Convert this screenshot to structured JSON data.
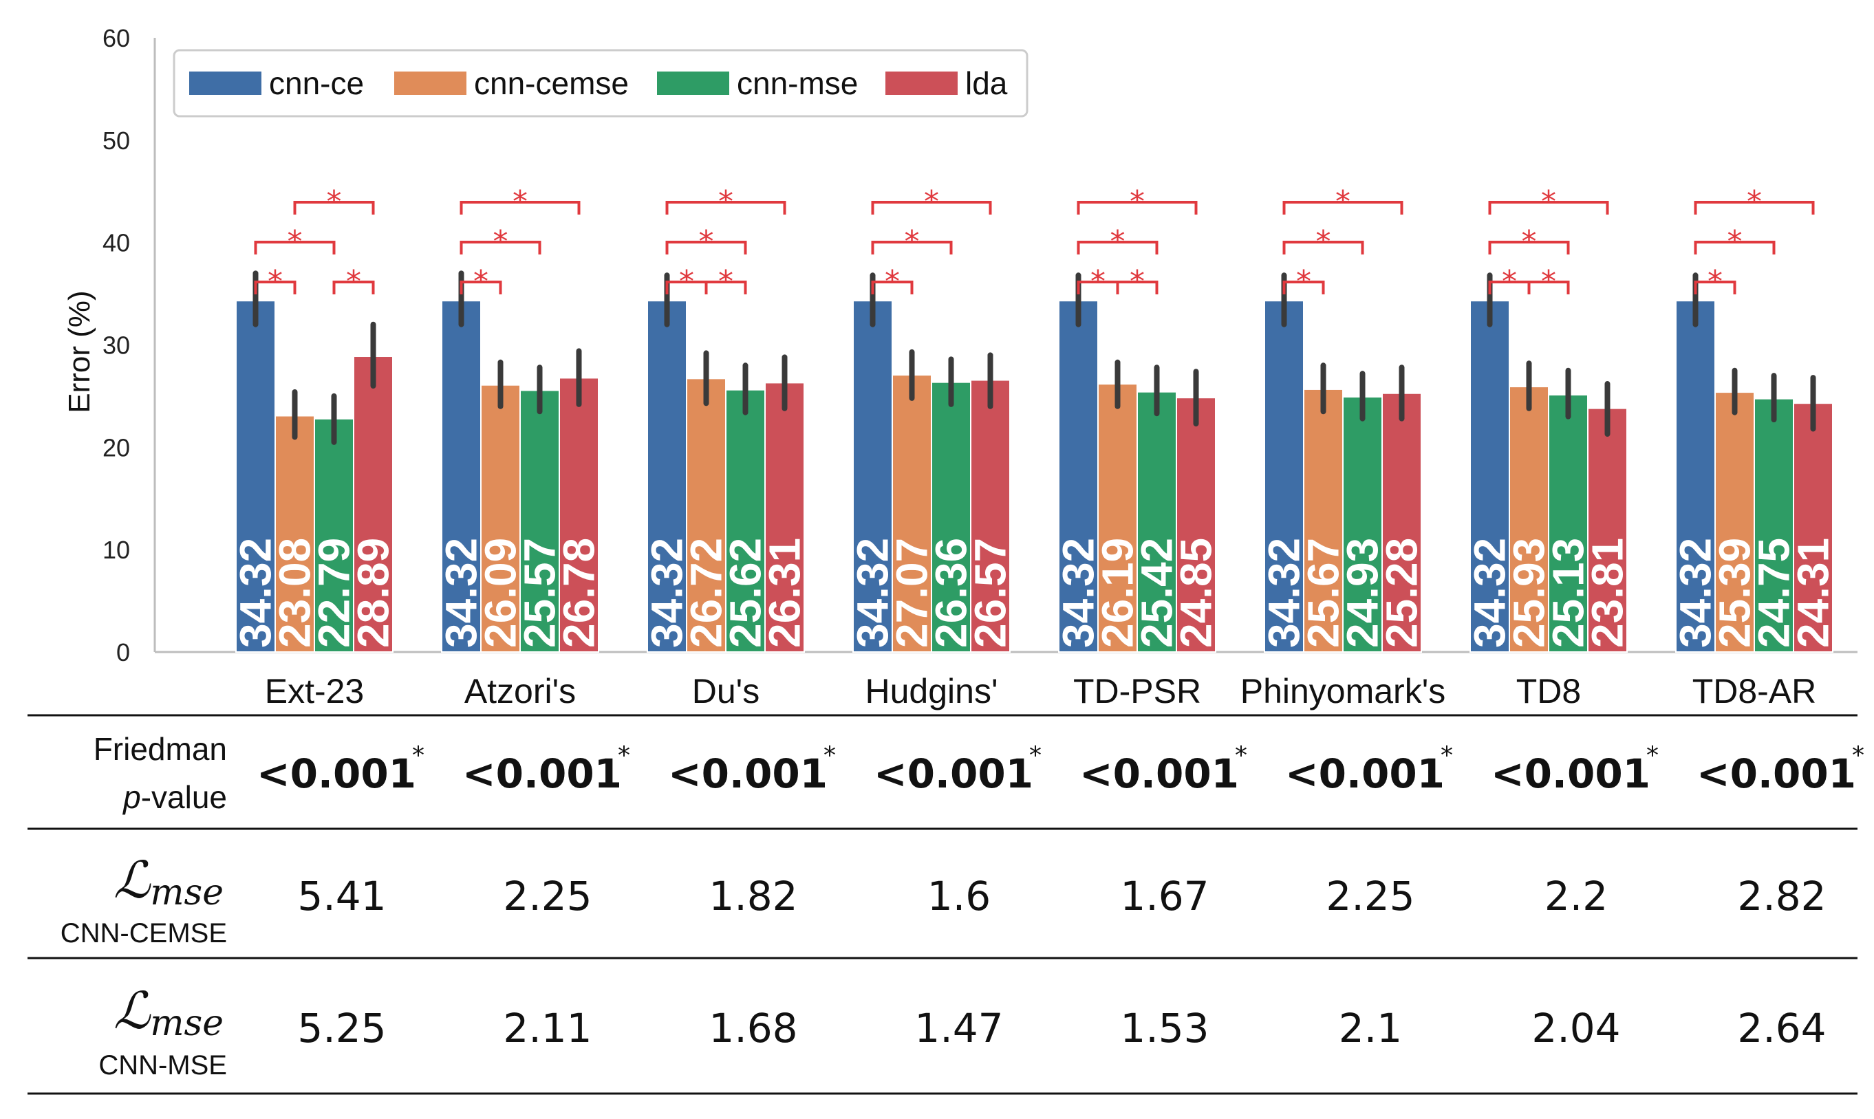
{
  "chart_data": {
    "type": "bar",
    "title": "",
    "xlabel": "",
    "ylabel": "Error (%)",
    "ylim": [
      0,
      60
    ],
    "yticks": [
      0,
      10,
      20,
      30,
      40,
      50,
      60
    ],
    "grid": false,
    "legend_position": "top-left",
    "categories": [
      "Ext-23",
      "Atzori's",
      "Du's",
      "Hudgins'",
      "TD-PSR",
      "Phinyomark's",
      "TD8",
      "TD8-AR"
    ],
    "series": [
      {
        "name": "cnn-ce",
        "color": "#3f6ea6",
        "values": [
          34.32,
          34.32,
          34.32,
          34.32,
          34.32,
          34.32,
          34.32,
          34.32
        ],
        "labels": [
          "34.32",
          "34.32",
          "34.32",
          "34.32",
          "34.32",
          "34.32",
          "34.32",
          "34.32"
        ],
        "err_low": [
          32.0,
          32.0,
          32.0,
          32.0,
          32.0,
          32.0,
          32.0,
          32.0
        ],
        "err_high": [
          37.0,
          37.0,
          36.8,
          36.8,
          36.8,
          36.8,
          36.8,
          36.8
        ]
      },
      {
        "name": "cnn-cemse",
        "color": "#e08c59",
        "values": [
          23.08,
          26.09,
          26.72,
          27.07,
          26.19,
          25.67,
          25.93,
          25.39
        ],
        "labels": [
          "23.08",
          "26.09",
          "26.72",
          "27.07",
          "26.19",
          "25.67",
          "25.93",
          "25.39"
        ],
        "err_low": [
          21.0,
          24.0,
          24.3,
          24.8,
          24.0,
          23.5,
          23.8,
          23.4
        ],
        "err_high": [
          25.4,
          28.3,
          29.2,
          29.3,
          28.3,
          28.0,
          28.2,
          27.5
        ]
      },
      {
        "name": "cnn-mse",
        "color": "#2e9c65",
        "values": [
          22.79,
          25.57,
          25.62,
          26.36,
          25.42,
          24.93,
          25.13,
          24.75
        ],
        "labels": [
          "22.79",
          "25.57",
          "25.62",
          "26.36",
          "25.42",
          "24.93",
          "25.13",
          "24.75"
        ],
        "err_low": [
          20.5,
          23.5,
          23.4,
          24.2,
          23.3,
          22.8,
          23.0,
          22.7
        ],
        "err_high": [
          25.0,
          27.8,
          28.0,
          28.6,
          27.8,
          27.2,
          27.5,
          27.0
        ]
      },
      {
        "name": "lda",
        "color": "#cc5058",
        "values": [
          28.89,
          26.78,
          26.31,
          26.57,
          24.85,
          25.28,
          23.81,
          24.31
        ],
        "labels": [
          "28.89",
          "26.78",
          "26.31",
          "26.57",
          "24.85",
          "25.28",
          "23.81",
          "24.31"
        ],
        "err_low": [
          26.0,
          24.2,
          23.8,
          24.0,
          22.3,
          22.8,
          21.3,
          21.8
        ],
        "err_high": [
          32.0,
          29.4,
          28.8,
          29.0,
          27.4,
          27.8,
          26.2,
          26.8
        ]
      }
    ],
    "significance": [
      {
        "category": "Ext-23",
        "pairs": [
          [
            "cnn-ce",
            "cnn-cemse"
          ],
          [
            "cnn-ce",
            "cnn-mse"
          ],
          [
            "cnn-cemse",
            "lda"
          ],
          [
            "cnn-mse",
            "lda"
          ]
        ],
        "marker": "*"
      },
      {
        "category": "Atzori's",
        "pairs": [
          [
            "cnn-ce",
            "cnn-cemse"
          ],
          [
            "cnn-ce",
            "cnn-mse"
          ],
          [
            "cnn-ce",
            "lda"
          ]
        ],
        "marker": "*"
      },
      {
        "category": "Du's",
        "pairs": [
          [
            "cnn-ce",
            "cnn-cemse"
          ],
          [
            "cnn-cemse",
            "cnn-mse"
          ],
          [
            "cnn-ce",
            "cnn-mse"
          ],
          [
            "cnn-ce",
            "lda"
          ]
        ],
        "marker": "*"
      },
      {
        "category": "Hudgins'",
        "pairs": [
          [
            "cnn-ce",
            "cnn-cemse"
          ],
          [
            "cnn-ce",
            "cnn-mse"
          ],
          [
            "cnn-ce",
            "lda"
          ]
        ],
        "marker": "*"
      },
      {
        "category": "TD-PSR",
        "pairs": [
          [
            "cnn-ce",
            "cnn-cemse"
          ],
          [
            "cnn-cemse",
            "cnn-mse"
          ],
          [
            "cnn-ce",
            "cnn-mse"
          ],
          [
            "cnn-ce",
            "lda"
          ]
        ],
        "marker": "*"
      },
      {
        "category": "Phinyomark's",
        "pairs": [
          [
            "cnn-ce",
            "cnn-cemse"
          ],
          [
            "cnn-ce",
            "cnn-mse"
          ],
          [
            "cnn-ce",
            "lda"
          ]
        ],
        "marker": "*"
      },
      {
        "category": "TD8",
        "pairs": [
          [
            "cnn-ce",
            "cnn-cemse"
          ],
          [
            "cnn-cemse",
            "cnn-mse"
          ],
          [
            "cnn-ce",
            "cnn-mse"
          ],
          [
            "cnn-ce",
            "lda"
          ]
        ],
        "marker": "*"
      },
      {
        "category": "TD8-AR",
        "pairs": [
          [
            "cnn-ce",
            "cnn-cemse"
          ],
          [
            "cnn-ce",
            "cnn-mse"
          ],
          [
            "cnn-ce",
            "lda"
          ]
        ],
        "marker": "*"
      }
    ]
  },
  "table": {
    "friedman": {
      "label_line1": "Friedman",
      "label_p": "p",
      "label_rest": "-value",
      "values": [
        "<0.001",
        "<0.001",
        "<0.001",
        "<0.001",
        "<0.001",
        "<0.001",
        "<0.001",
        "<0.001"
      ],
      "marker": "*"
    },
    "lmse_cemse": {
      "symbol": "ℒ",
      "subscript": "mse",
      "caption": "CNN-CEMSE",
      "values": [
        "5.41",
        "2.25",
        "1.82",
        "1.6",
        "1.67",
        "2.25",
        "2.2",
        "2.82"
      ]
    },
    "lmse_mse": {
      "symbol": "ℒ",
      "subscript": "mse",
      "caption": "CNN-MSE",
      "values": [
        "5.25",
        "2.11",
        "1.68",
        "1.47",
        "1.53",
        "2.1",
        "2.04",
        "2.64"
      ]
    }
  }
}
